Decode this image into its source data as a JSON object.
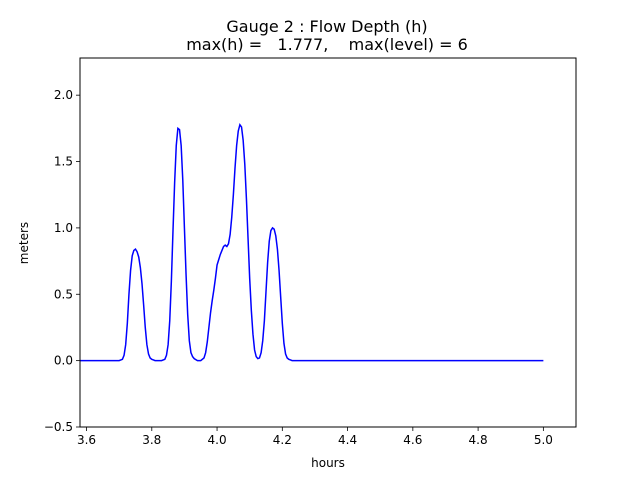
{
  "chart_data": {
    "type": "line",
    "title_line1": "Gauge 2 : Flow Depth (h)",
    "title_line2": "max(h) =   1.777,    max(level) = 6",
    "xlabel": "hours",
    "ylabel": "meters",
    "xlim": [
      3.58,
      5.1
    ],
    "ylim": [
      -0.5,
      2.28
    ],
    "xticks": [
      3.6,
      3.8,
      4.0,
      4.2,
      4.4,
      4.6,
      4.8,
      5.0
    ],
    "xtick_labels": [
      "3.6",
      "3.8",
      "4.0",
      "4.2",
      "4.4",
      "4.6",
      "4.8",
      "5.0"
    ],
    "yticks": [
      -0.5,
      0.0,
      0.5,
      1.0,
      1.5,
      2.0
    ],
    "ytick_labels": [
      "−0.5",
      "0.0",
      "0.5",
      "1.0",
      "1.5",
      "2.0"
    ],
    "grid": false,
    "series": [
      {
        "color": "#0000ff",
        "x": [
          3.58,
          3.7,
          3.71,
          3.715,
          3.72,
          3.725,
          3.73,
          3.735,
          3.74,
          3.745,
          3.75,
          3.755,
          3.76,
          3.765,
          3.77,
          3.775,
          3.78,
          3.785,
          3.79,
          3.795,
          3.8,
          3.805,
          3.81,
          3.815,
          3.82,
          3.83,
          3.84,
          3.845,
          3.85,
          3.855,
          3.86,
          3.865,
          3.87,
          3.875,
          3.88,
          3.885,
          3.89,
          3.895,
          3.9,
          3.905,
          3.91,
          3.915,
          3.92,
          3.925,
          3.93,
          3.94,
          3.95,
          3.96,
          3.965,
          3.97,
          3.975,
          3.98,
          3.985,
          3.99,
          3.995,
          4.0,
          4.005,
          4.01,
          4.015,
          4.02,
          4.025,
          4.03,
          4.035,
          4.04,
          4.045,
          4.05,
          4.055,
          4.06,
          4.065,
          4.07,
          4.075,
          4.08,
          4.085,
          4.09,
          4.095,
          4.1,
          4.105,
          4.11,
          4.115,
          4.12,
          4.125,
          4.13,
          4.135,
          4.14,
          4.145,
          4.15,
          4.155,
          4.16,
          4.165,
          4.17,
          4.175,
          4.18,
          4.185,
          4.19,
          4.195,
          4.2,
          4.205,
          4.21,
          4.215,
          4.22,
          4.225,
          4.23,
          4.235,
          4.24,
          4.245,
          4.25,
          4.255,
          4.26,
          4.265,
          4.27,
          4.275,
          4.28,
          4.29,
          4.3,
          4.32,
          4.4,
          5.0
        ],
        "y": [
          0.0,
          0.0,
          0.01,
          0.04,
          0.12,
          0.28,
          0.5,
          0.68,
          0.79,
          0.83,
          0.84,
          0.82,
          0.78,
          0.7,
          0.58,
          0.42,
          0.25,
          0.12,
          0.05,
          0.02,
          0.01,
          0.005,
          0.0,
          0.0,
          0.0,
          0.0,
          0.01,
          0.04,
          0.12,
          0.3,
          0.6,
          0.98,
          1.34,
          1.62,
          1.75,
          1.74,
          1.62,
          1.36,
          1.0,
          0.65,
          0.35,
          0.15,
          0.06,
          0.03,
          0.015,
          0.0,
          0.0,
          0.02,
          0.06,
          0.14,
          0.25,
          0.36,
          0.45,
          0.53,
          0.62,
          0.72,
          0.76,
          0.8,
          0.83,
          0.86,
          0.87,
          0.86,
          0.88,
          0.95,
          1.08,
          1.25,
          1.45,
          1.62,
          1.73,
          1.777,
          1.76,
          1.66,
          1.48,
          1.22,
          0.92,
          0.62,
          0.38,
          0.2,
          0.08,
          0.03,
          0.015,
          0.02,
          0.06,
          0.15,
          0.3,
          0.52,
          0.74,
          0.9,
          0.98,
          1.0,
          0.99,
          0.94,
          0.84,
          0.68,
          0.48,
          0.28,
          0.13,
          0.05,
          0.02,
          0.01,
          0.005,
          0.0,
          0.0,
          0.0,
          0.0,
          0.0,
          0.0,
          0.0,
          0.0,
          0.0,
          0.0,
          0.0,
          0.0,
          0.0,
          0.0,
          0.0,
          0.0
        ]
      }
    ]
  }
}
